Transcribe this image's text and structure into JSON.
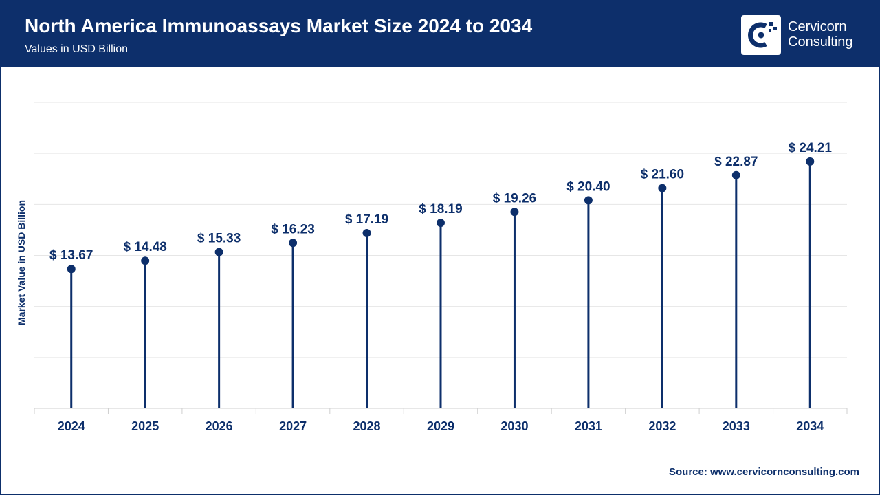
{
  "header": {
    "title": "North America Immunoassays Market Size 2024 to 2034",
    "subtitle": "Values in USD Billion",
    "logo_line1": "Cervicorn",
    "logo_line2": "Consulting"
  },
  "source": "Source: www.cervicornconsulting.com",
  "colors": {
    "brand": "#0d2f6b",
    "grid": "#e6e6e6",
    "background": "#ffffff"
  },
  "chart_data": {
    "type": "scatter",
    "style": "lollipop",
    "title": "North America Immunoassays Market Size 2024 to 2034",
    "subtitle": "Values in USD Billion",
    "xlabel": "",
    "ylabel": "Market Value in USD Billion",
    "categories": [
      "2024",
      "2025",
      "2026",
      "2027",
      "2028",
      "2029",
      "2030",
      "2031",
      "2032",
      "2033",
      "2034"
    ],
    "values": [
      13.67,
      14.48,
      15.33,
      16.23,
      17.19,
      18.19,
      19.26,
      20.4,
      21.6,
      22.87,
      24.21
    ],
    "data_labels": [
      "$ 13.67",
      "$ 14.48",
      "$ 15.33",
      "$ 16.23",
      "$ 17.19",
      "$ 18.19",
      "$ 19.26",
      "$ 20.40",
      "$ 21.60",
      "$ 22.87",
      "$ 24.21"
    ],
    "ylim": [
      0,
      30
    ],
    "grid": true,
    "legend": "none"
  }
}
